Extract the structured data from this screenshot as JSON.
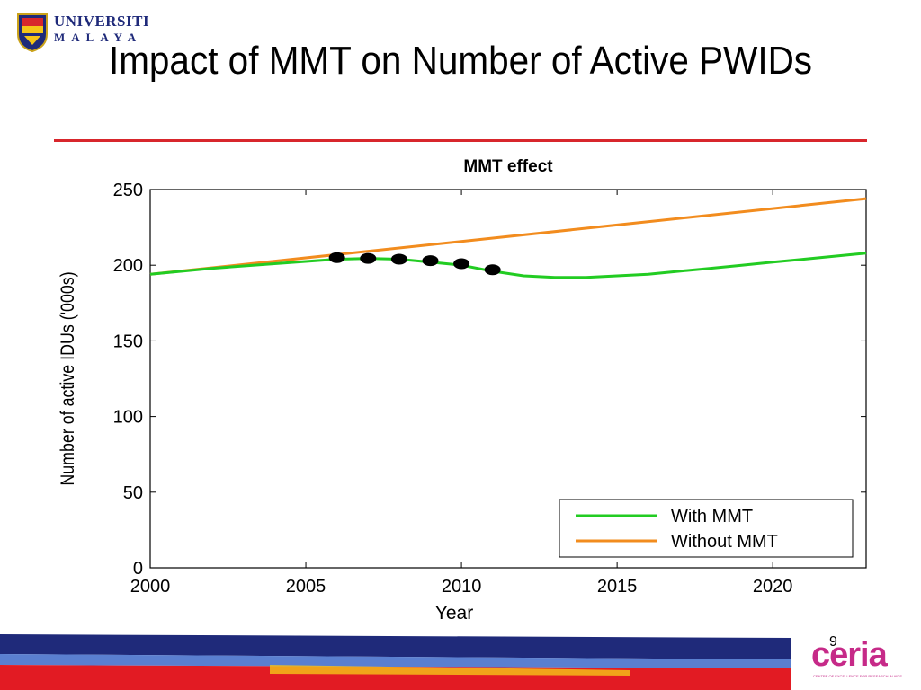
{
  "slide": {
    "title": "Impact of MMT on Number of Active PWIDs",
    "page_number": "9"
  },
  "logo_um": {
    "name": "UNIVERSITI",
    "subname": "MALAYA",
    "icon": "crest-icon"
  },
  "logo_ceria": {
    "word": "ceria",
    "subtitle": "CENTRE OF EXCELLENCE FOR RESEARCH IN AIDS",
    "icon": "ceria-logo"
  },
  "colors": {
    "title_rule": "#d8262c",
    "with_mmt": "#22cc22",
    "without_mmt": "#f28c1e",
    "markers": "#000000"
  },
  "chart_data": {
    "type": "line",
    "title": "MMT effect",
    "xlabel": "Year",
    "ylabel": "Number of active IDUs ('000s)",
    "xlim": [
      2000,
      2023
    ],
    "ylim": [
      0,
      250
    ],
    "xticks": [
      2000,
      2005,
      2010,
      2015,
      2020
    ],
    "yticks": [
      0,
      50,
      100,
      150,
      200,
      250
    ],
    "grid": false,
    "legend_position": "bottom-right",
    "series": [
      {
        "name": "With MMT",
        "x": [
          2000,
          2002,
          2004,
          2006,
          2007,
          2008,
          2009,
          2010,
          2011,
          2012,
          2013,
          2014,
          2015,
          2016,
          2017,
          2018,
          2019,
          2020,
          2021,
          2022,
          2023
        ],
        "values": [
          194,
          198,
          201,
          204,
          204.5,
          204,
          202,
          200,
          196,
          193,
          192,
          192,
          193,
          194,
          196,
          198,
          200,
          202,
          204,
          206,
          208
        ]
      },
      {
        "name": "Without MMT",
        "x": [
          2000,
          2023
        ],
        "values": [
          194,
          244
        ]
      }
    ],
    "observed_points": {
      "x": [
        2006,
        2007,
        2008,
        2009,
        2010,
        2011
      ],
      "y": [
        205,
        204.5,
        204,
        203,
        201,
        197
      ]
    }
  }
}
